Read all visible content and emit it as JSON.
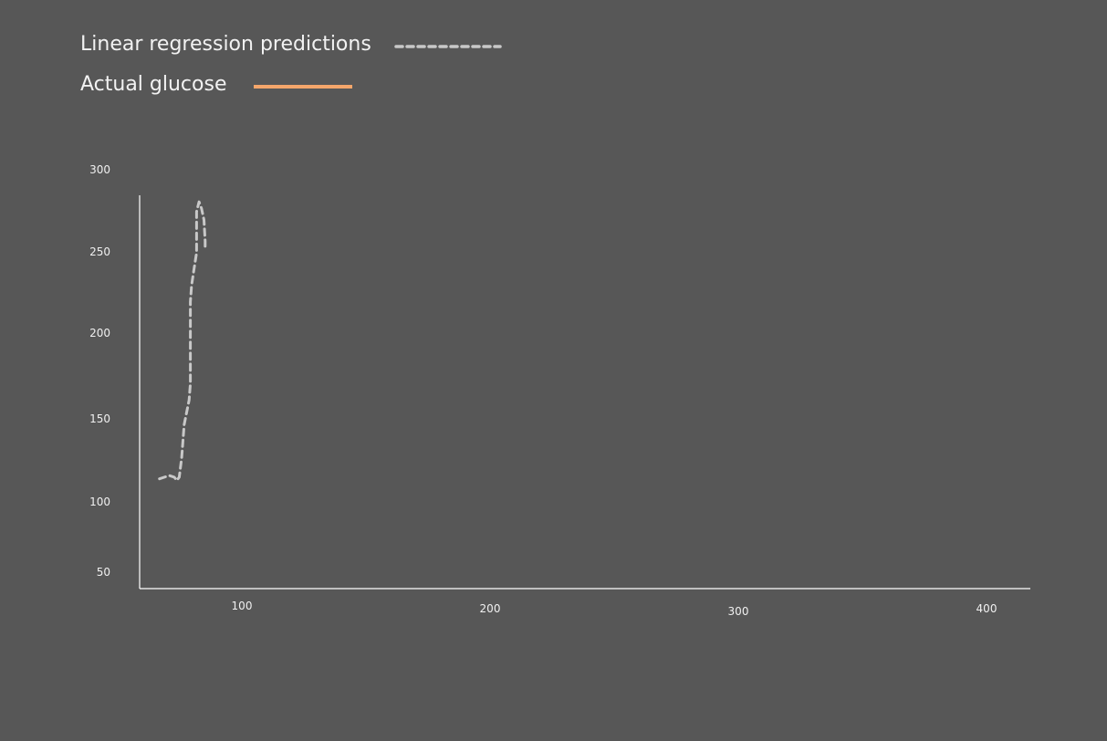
{
  "legend": {
    "items": [
      {
        "label": "Linear regression predictions",
        "style": "dashed",
        "color": "#c8c8c8"
      },
      {
        "label": "Actual glucose",
        "style": "solid",
        "color": "#f5a66b"
      }
    ]
  },
  "chart_data": {
    "type": "line",
    "title": "",
    "xlabel": "",
    "ylabel": "",
    "xlim": [
      60,
      420
    ],
    "ylim": [
      50,
      290
    ],
    "x_ticks": [
      100,
      200,
      300,
      400
    ],
    "y_ticks": [
      300,
      250,
      200,
      150,
      100,
      50
    ],
    "grid": false,
    "legend_position": "top-left",
    "series": [
      {
        "name": "Linear regression predictions",
        "style": "dashed",
        "color": "#c8c8c8",
        "points": [
          [
            68,
            117
          ],
          [
            72,
            119
          ],
          [
            74,
            118
          ],
          [
            75,
            116
          ],
          [
            76,
            118
          ],
          [
            77,
            130
          ],
          [
            78,
            150
          ],
          [
            80,
            165
          ],
          [
            80.5,
            175
          ],
          [
            80.5,
            200
          ],
          [
            80.5,
            225
          ],
          [
            81,
            235
          ],
          [
            82,
            245
          ],
          [
            83,
            255
          ],
          [
            83,
            270
          ],
          [
            83,
            280
          ],
          [
            84,
            286
          ],
          [
            85,
            282
          ],
          [
            86,
            275
          ],
          [
            86.5,
            262
          ],
          [
            86.5,
            257
          ]
        ]
      },
      {
        "name": "Actual glucose",
        "style": "solid",
        "color": "#f5a66b",
        "points": []
      }
    ]
  }
}
